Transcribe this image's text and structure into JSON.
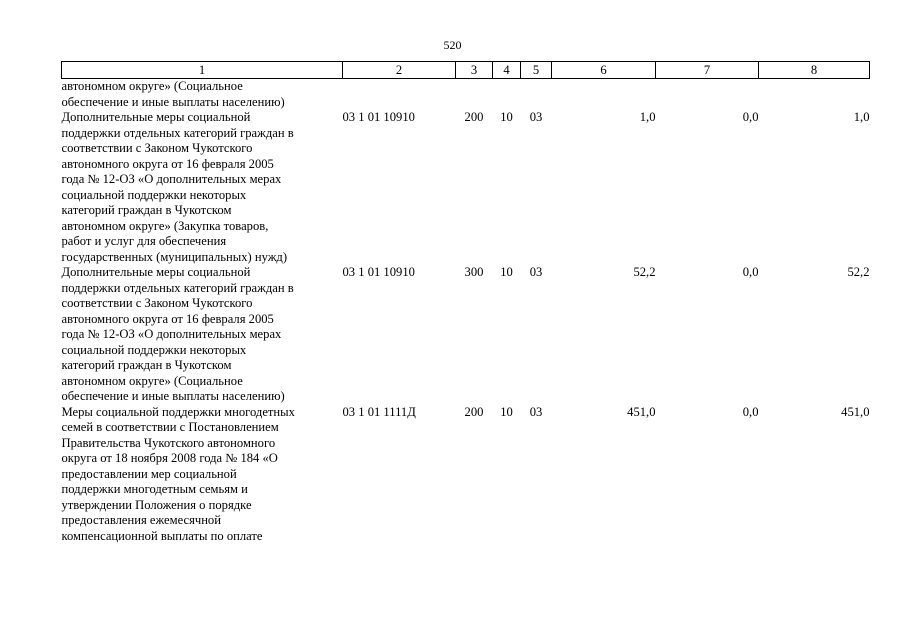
{
  "page_number": "520",
  "table": {
    "headers": [
      "1",
      "2",
      "3",
      "4",
      "5",
      "6",
      "7",
      "8"
    ],
    "continuation": {
      "name_lines": [
        "автономном округе» (Социальное",
        "обеспечение и иные выплаты населению)"
      ]
    },
    "rows": [
      {
        "name_lines": [
          "Дополнительные меры социальной",
          "поддержки отдельных категорий граждан в",
          "соответствии с Законом Чукотского",
          "автономного округа от 16 февраля 2005",
          "года № 12-ОЗ «О дополнительных мерах",
          "социальной поддержки некоторых",
          "категорий граждан в Чукотском",
          "автономном округе» (Закупка товаров,",
          "работ и услуг для обеспечения",
          "государственных (муниципальных) нужд)"
        ],
        "csr": "03 1 01 10910",
        "vr": "200",
        "rz": "10",
        "pr": "03",
        "col6": "1,0",
        "col7": "0,0",
        "col8": "1,0"
      },
      {
        "name_lines": [
          "Дополнительные меры социальной",
          "поддержки отдельных категорий граждан в",
          "соответствии с Законом Чукотского",
          "автономного округа от 16 февраля 2005",
          "года № 12-ОЗ «О дополнительных мерах",
          "социальной поддержки некоторых",
          "категорий граждан в Чукотском",
          "автономном округе» (Социальное",
          "обеспечение и иные выплаты населению)"
        ],
        "csr": "03 1 01 10910",
        "vr": "300",
        "rz": "10",
        "pr": "03",
        "col6": "52,2",
        "col7": "0,0",
        "col8": "52,2"
      },
      {
        "name_lines": [
          "Меры социальной поддержки многодетных",
          "семей в соответствии с Постановлением",
          "Правительства Чукотского автономного",
          "округа от 18 ноября 2008 года № 184 «О",
          "предоставлении мер социальной",
          "поддержки многодетным семьям и",
          "утверждении Положения о порядке",
          "предоставления ежемесячной",
          "компенсационной выплаты по оплате"
        ],
        "csr": "03 1 01 1111Д",
        "vr": "200",
        "rz": "10",
        "pr": "03",
        "col6": "451,0",
        "col7": "0,0",
        "col8": "451,0"
      }
    ]
  }
}
